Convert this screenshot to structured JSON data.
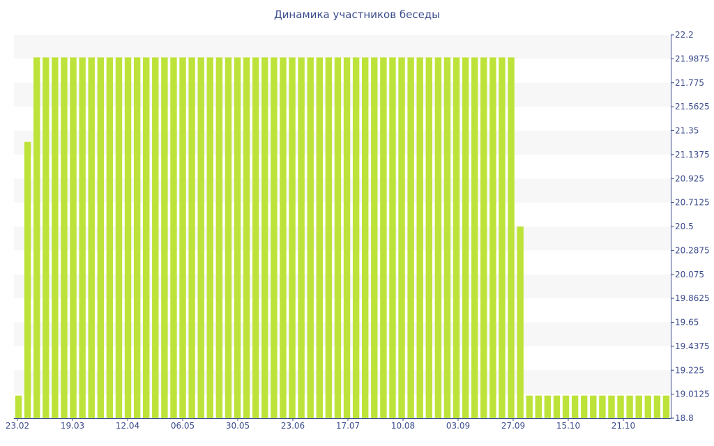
{
  "chart_data": {
    "type": "bar",
    "title": "Динамика участников беседы",
    "xlabel": "",
    "ylabel": "",
    "ylim": [
      18.8,
      22.2
    ],
    "y_axis_side": "right",
    "grid": "horizontal bands",
    "x_tick_labels": [
      "23.02",
      "19.03",
      "12.04",
      "06.05",
      "30.05",
      "23.06",
      "17.07",
      "10.08",
      "03.09",
      "27.09",
      "15.10",
      "21.10"
    ],
    "y_tick_labels": [
      "22.2",
      "21.9875",
      "21.775",
      "21.5625",
      "21.35",
      "21.1375",
      "20.925",
      "20.7125",
      "20.5",
      "20.2875",
      "20.075",
      "19.8625",
      "19.65",
      "19.4375",
      "19.225",
      "19.0125",
      "18.8"
    ],
    "values": [
      19,
      21.25,
      22,
      22,
      22,
      22,
      22,
      22,
      22,
      22,
      22,
      22,
      22,
      22,
      22,
      22,
      22,
      22,
      22,
      22,
      22,
      22,
      22,
      22,
      22,
      22,
      22,
      22,
      22,
      22,
      22,
      22,
      22,
      22,
      22,
      22,
      22,
      22,
      22,
      22,
      22,
      22,
      22,
      22,
      22,
      22,
      22,
      22,
      22,
      22,
      22,
      22,
      22,
      22,
      22,
      20.5,
      19,
      19,
      19,
      19,
      19,
      19,
      19,
      19,
      19,
      19,
      19,
      19,
      19,
      19,
      19,
      19
    ],
    "bar_color": "#bde33a",
    "band_color": "#f7f7f7",
    "axis_color": "#3b4b8c"
  }
}
